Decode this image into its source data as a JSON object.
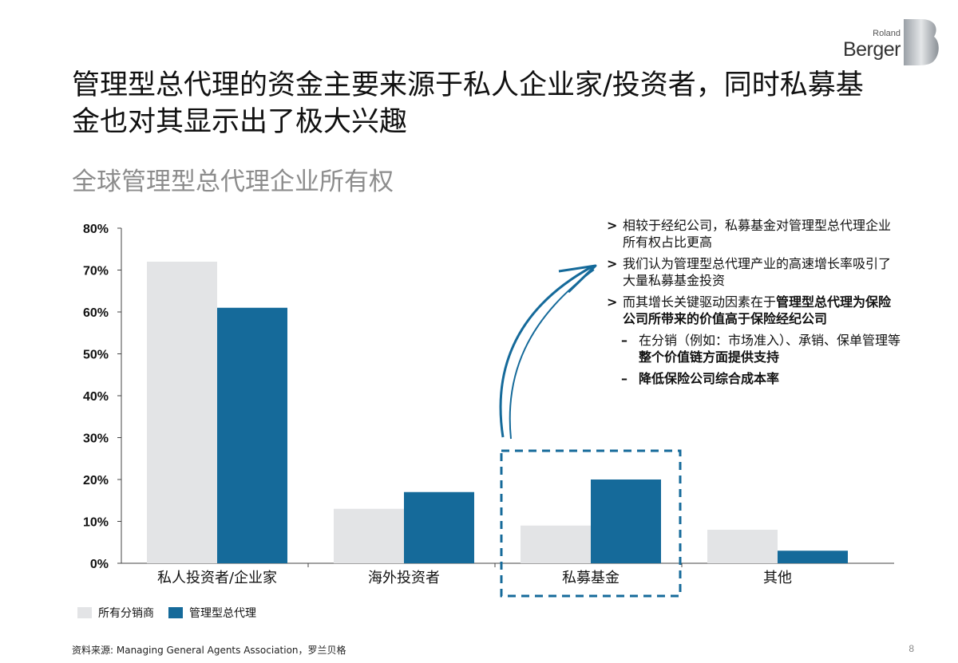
{
  "title": "管理型总代理的资金主要来源于私人企业家/投资者，同时私募基金也对其显示出了极大兴趣",
  "subtitle": "全球管理型总代理企业所有权",
  "logo": {
    "top": "Roland",
    "main": "Berger"
  },
  "colors": {
    "series_a": "#e3e4e6",
    "series_b": "#156a9a",
    "accent": "#156a9a",
    "axis": "#444444"
  },
  "chart_data": {
    "type": "bar",
    "categories": [
      "私人投资者/企业家",
      "海外投资者",
      "私募基金",
      "其他"
    ],
    "series": [
      {
        "name": "所有分销商",
        "values": [
          72,
          13,
          9,
          8
        ]
      },
      {
        "name": "管理型总代理",
        "values": [
          61,
          17,
          20,
          3
        ]
      }
    ],
    "ylim": [
      0,
      80
    ],
    "yticks": [
      "0%",
      "10%",
      "20%",
      "30%",
      "40%",
      "50%",
      "60%",
      "70%",
      "80%"
    ],
    "highlight_category": "私募基金",
    "legend_position": "bottom-left"
  },
  "notes": [
    {
      "marker": ">",
      "parts": [
        {
          "text": "相较于经纪公司，私募基金对管理型总代理企业所有权占比更高",
          "bold": false
        }
      ]
    },
    {
      "marker": ">",
      "parts": [
        {
          "text": "我们认为管理型总代理产业的高速增长率吸引了大量私募基金投资",
          "bold": false
        }
      ]
    },
    {
      "marker": ">",
      "parts": [
        {
          "text": "而其增长关键驱动因素在于",
          "bold": false
        },
        {
          "text": "管理型总代理为保险公司所带来的价值高于保险经纪公司",
          "bold": true
        }
      ]
    }
  ],
  "subnotes": [
    {
      "marker": "–",
      "parts": [
        {
          "text": "在分销（例如：市场准入）、承销、保单管理等",
          "bold": false
        },
        {
          "text": "整个价值链方面提供支持",
          "bold": true
        }
      ]
    },
    {
      "marker": "–",
      "parts": [
        {
          "text": "降低保险公司综合成本率",
          "bold": true
        }
      ]
    }
  ],
  "source": "资料来源: Managing General Agents Association，罗兰贝格",
  "page_number": "8"
}
